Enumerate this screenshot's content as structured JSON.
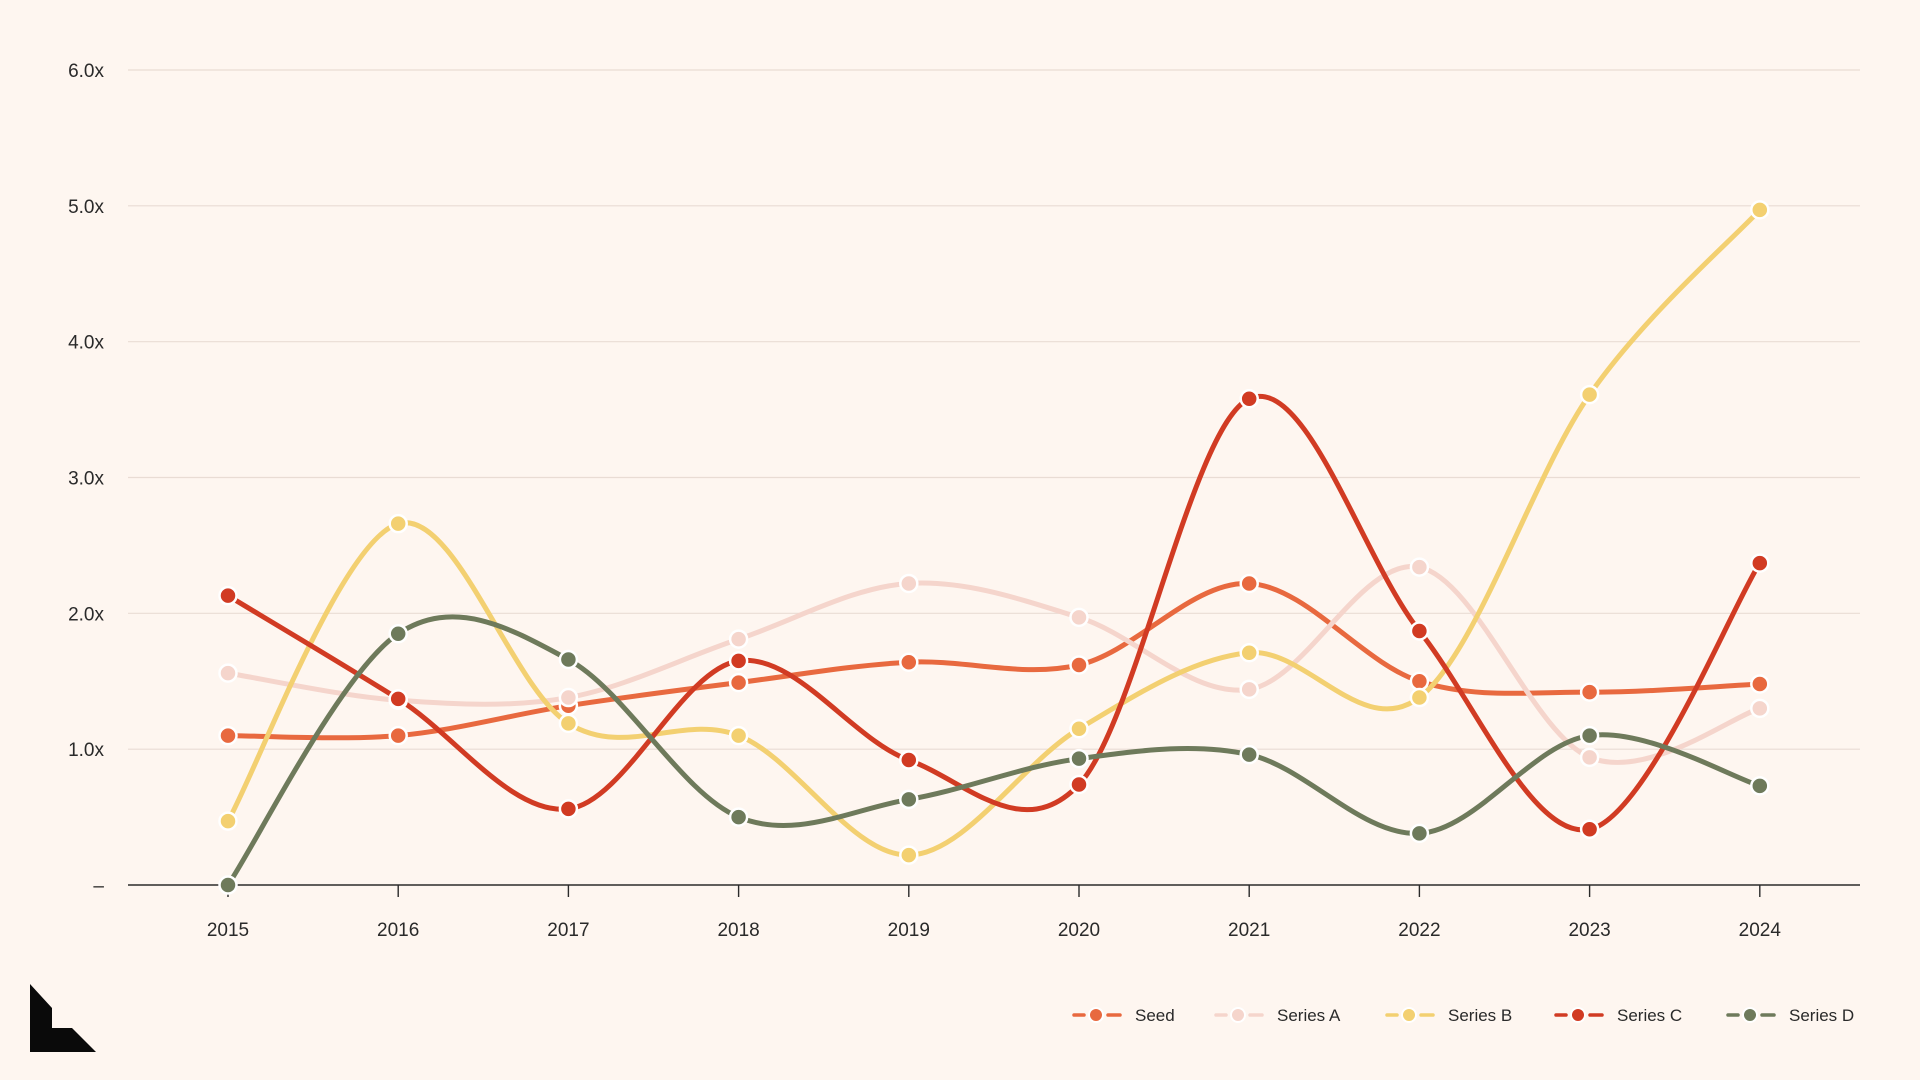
{
  "chart_data": {
    "type": "line",
    "title": "",
    "xlabel": "",
    "ylabel": "",
    "x": [
      "2015",
      "2016",
      "2017",
      "2018",
      "2019",
      "2020",
      "2021",
      "2022",
      "2023",
      "2024"
    ],
    "ylim": [
      0,
      6
    ],
    "yticks": [
      0,
      1,
      2,
      3,
      4,
      5,
      6
    ],
    "ytick_labels": [
      "–",
      "1.0x",
      "2.0x",
      "3.0x",
      "4.0x",
      "5.0x",
      "6.0x"
    ],
    "grid": true,
    "legend_position": "bottom-right",
    "smooth": true,
    "series": [
      {
        "name": "Seed",
        "color": "#E8693F",
        "values": [
          1.1,
          1.1,
          1.32,
          1.49,
          1.64,
          1.62,
          2.22,
          1.5,
          1.42,
          1.48
        ]
      },
      {
        "name": "Series A",
        "color": "#F5D5CC",
        "values": [
          1.56,
          1.36,
          1.38,
          1.81,
          2.22,
          1.97,
          1.44,
          2.34,
          0.94,
          1.3
        ]
      },
      {
        "name": "Series B",
        "color": "#F3D071",
        "values": [
          0.47,
          2.66,
          1.19,
          1.1,
          0.22,
          1.15,
          1.71,
          1.38,
          3.61,
          4.97
        ]
      },
      {
        "name": "Series C",
        "color": "#D13B23",
        "values": [
          2.13,
          1.37,
          0.56,
          1.65,
          0.92,
          0.74,
          3.58,
          1.87,
          0.41,
          2.37
        ]
      },
      {
        "name": "Series D",
        "color": "#6E7A5B",
        "values": [
          0.0,
          1.85,
          1.66,
          0.5,
          0.63,
          0.93,
          0.96,
          0.38,
          1.1,
          0.73
        ]
      }
    ]
  },
  "branding": {
    "logo_icon": "brand-logo-icon",
    "logo_color": "#0a0a0a"
  }
}
